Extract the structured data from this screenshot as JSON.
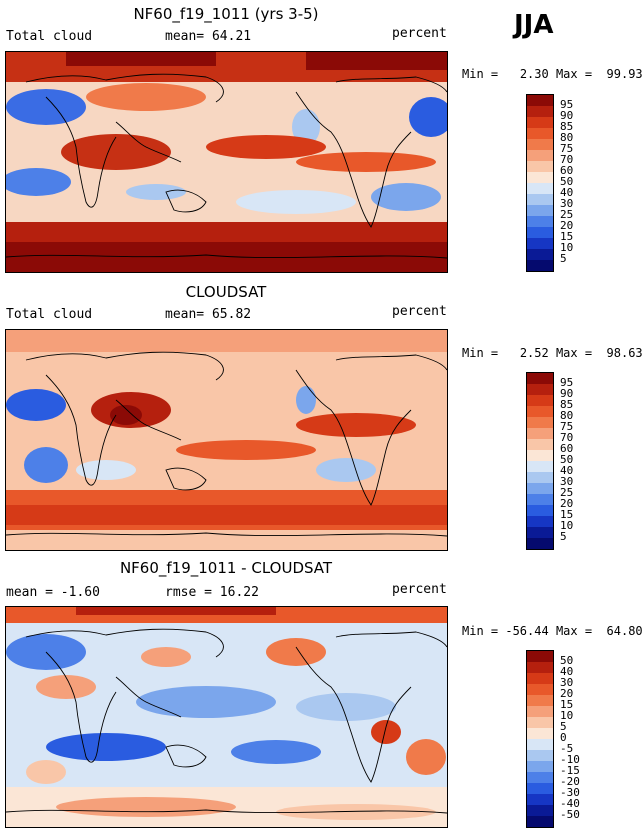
{
  "season": "JJA",
  "panels": [
    {
      "title": "NF60_f19_1011 (yrs 3-5)",
      "left_label": "Total cloud",
      "center_label": "mean=  64.21",
      "units": "percent",
      "min_label": "Min =",
      "min_value": "2.30",
      "max_label": "Max =",
      "max_value": "99.93"
    },
    {
      "title": "CLOUDSAT",
      "left_label": "Total cloud",
      "center_label": "mean=  65.82",
      "units": "percent",
      "min_label": "Min =",
      "min_value": "2.52",
      "max_label": "Max =",
      "max_value": "98.63"
    },
    {
      "title": "NF60_f19_1011 - CLOUDSAT",
      "left_label": "mean =  -1.60",
      "center_label": "rmse =  16.22",
      "units": "percent",
      "min_label": "Min =",
      "min_value": "-56.44",
      "max_label": "Max =",
      "max_value": "64.80"
    }
  ],
  "colorbars": {
    "absolute": {
      "levels": [
        "95",
        "90",
        "85",
        "80",
        "75",
        "70",
        "60",
        "50",
        "40",
        "30",
        "25",
        "20",
        "15",
        "10",
        "5"
      ],
      "colors": [
        "#8b0a06",
        "#b5200e",
        "#d63a17",
        "#e8582a",
        "#f07a4a",
        "#f5a07a",
        "#f9c6a8",
        "#fbe6d6",
        "#d8e6f6",
        "#aac8f0",
        "#7ba6ec",
        "#4d80e8",
        "#2a5ce0",
        "#1636c4",
        "#0a1a96",
        "#050a6e"
      ]
    },
    "difference": {
      "levels": [
        "50",
        "40",
        "30",
        "20",
        "15",
        "10",
        "5",
        "0",
        "-5",
        "-10",
        "-15",
        "-20",
        "-30",
        "-40",
        "-50"
      ],
      "colors": [
        "#8b0a06",
        "#b5200e",
        "#d63a17",
        "#e8582a",
        "#f07a4a",
        "#f5a07a",
        "#f9c6a8",
        "#fbe6d6",
        "#d8e6f6",
        "#aac8f0",
        "#7ba6ec",
        "#4d80e8",
        "#2a5ce0",
        "#1636c4",
        "#0a1a96",
        "#050a6e"
      ]
    }
  }
}
